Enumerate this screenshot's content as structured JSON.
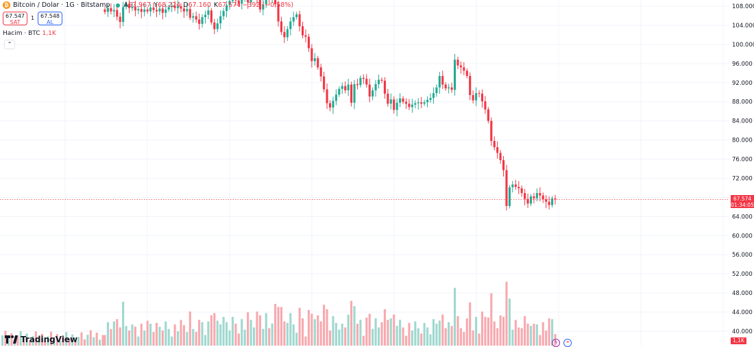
{
  "legend": {
    "symbol": "Bitcoin / Dolar · 1G · Bitstamp",
    "open_k": "A",
    "open": "67.967",
    "high_k": "Y",
    "high": "68.224",
    "low_k": "D",
    "low": "67.160",
    "close_k": "K",
    "close": "67.574",
    "change": "−392 (−0,58%)"
  },
  "trade": {
    "sell_price": "67.547",
    "sell_label": "SAT",
    "spread": "1",
    "buy_price": "67.548",
    "buy_label": "AL"
  },
  "volume_legend": {
    "label": "Hacim · BTC",
    "value": "1,1K"
  },
  "collapse_glyph": "⌃",
  "brand": "TradingView",
  "price_tag": {
    "price": "67.574",
    "countdown": "01:34:05"
  },
  "volume_tag": "1,1K",
  "colors": {
    "up": "#22ab94",
    "down": "#f23645",
    "up_volume": "#9fd8cf",
    "down_volume": "#f7a9ae",
    "grid": "#f0f3fa"
  },
  "chart_data": {
    "type": "candlestick",
    "yticks": [
      "108.000",
      "104.000",
      "100.000",
      "96.000",
      "92.000",
      "88.000",
      "84.000",
      "80.000",
      "76.000",
      "72.000",
      "68.000",
      "64.000",
      "60.000",
      "56.000",
      "52.000",
      "48.000",
      "44.000",
      "40.000"
    ],
    "last_price": 67574,
    "candles_close": [
      106800,
      107600,
      106900,
      107200,
      105800,
      104700,
      107800,
      108500,
      107600,
      107900,
      107100,
      107400,
      106800,
      107300,
      106900,
      107700,
      107200,
      106900,
      107500,
      106600,
      107300,
      107800,
      108100,
      107600,
      108000,
      107500,
      106900,
      107400,
      105600,
      105900,
      105200,
      104300,
      105700,
      106200,
      107100,
      104600,
      103200,
      104400,
      105900,
      107000,
      108200,
      109100,
      110400,
      109200,
      108500,
      109700,
      110300,
      108800,
      110100,
      111200,
      109400,
      107300,
      108400,
      110200,
      109600,
      111600,
      108400,
      104800,
      102600,
      101500,
      103200,
      104800,
      105700,
      106300,
      103800,
      101900,
      101600,
      99200,
      96500,
      97100,
      95200,
      93300,
      90600,
      87700,
      86800,
      88200,
      89500,
      90700,
      91300,
      90400,
      91600,
      87800,
      91700,
      91500,
      93000,
      92800,
      91600,
      89100,
      90400,
      91700,
      92600,
      92400,
      89700,
      87600,
      88500,
      86300,
      87800,
      88700,
      88000,
      87600,
      86900,
      87400,
      87700,
      87900,
      87600,
      87900,
      88400,
      88800,
      89800,
      91000,
      93400,
      91600,
      90800,
      91000,
      90500,
      96800,
      95600,
      95200,
      94500,
      93400,
      89400,
      88300,
      89800,
      89700,
      88100,
      86400,
      84000,
      79800,
      78500,
      77300,
      75800,
      73700,
      66200,
      70100,
      70700,
      70200,
      69900,
      68900,
      67700,
      66700,
      68200,
      67800,
      68900,
      68400,
      67600,
      67100,
      66400,
      67800,
      67574
    ],
    "volume_note": "daily trading volume in BTC"
  }
}
